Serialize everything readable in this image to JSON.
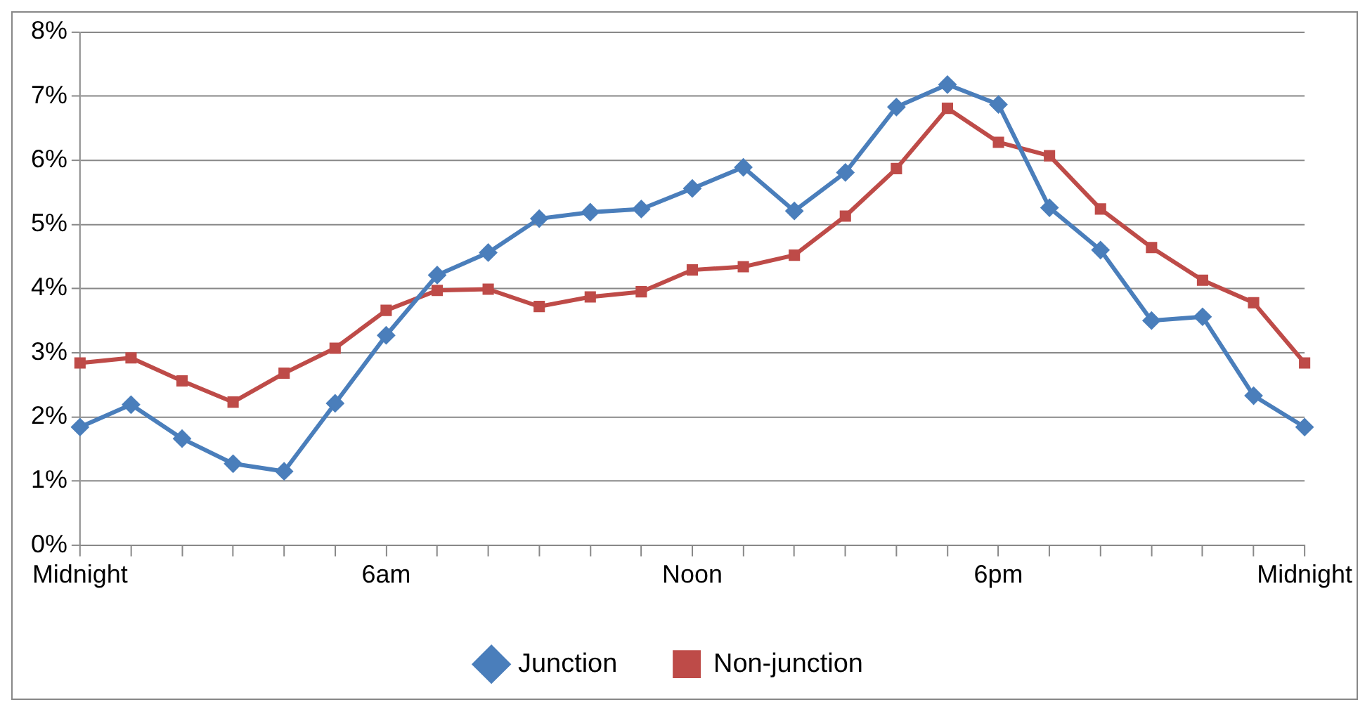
{
  "chart_data": {
    "type": "line",
    "categories": [
      "Midnight",
      null,
      null,
      null,
      null,
      null,
      "6am",
      null,
      null,
      null,
      null,
      null,
      "Noon",
      null,
      null,
      null,
      null,
      null,
      "6pm",
      null,
      null,
      null,
      null,
      null,
      "Midnight"
    ],
    "series": [
      {
        "name": "Junction",
        "color": "#4a7ebb",
        "marker": "diamond",
        "values": [
          1.84,
          2.19,
          1.66,
          1.27,
          1.15,
          2.21,
          3.27,
          4.21,
          4.56,
          5.09,
          5.19,
          5.24,
          5.56,
          5.89,
          5.21,
          5.81,
          6.83,
          7.18,
          6.87,
          5.26,
          4.6,
          3.5,
          3.56,
          2.33,
          1.84
        ]
      },
      {
        "name": "Non-junction",
        "color": "#be4b48",
        "marker": "square",
        "values": [
          2.84,
          2.92,
          2.56,
          2.23,
          2.68,
          3.07,
          3.66,
          3.97,
          3.99,
          3.72,
          3.87,
          3.95,
          4.29,
          4.34,
          4.52,
          5.13,
          5.87,
          6.81,
          6.28,
          6.07,
          5.24,
          4.64,
          4.13,
          3.78,
          2.84
        ]
      }
    ],
    "ylim": [
      0,
      8
    ],
    "yticks": [
      {
        "value": 0,
        "label": "0%"
      },
      {
        "value": 1,
        "label": "1%"
      },
      {
        "value": 2,
        "label": "2%"
      },
      {
        "value": 3,
        "label": "3%"
      },
      {
        "value": 4,
        "label": "4%"
      },
      {
        "value": 5,
        "label": "5%"
      },
      {
        "value": 6,
        "label": "6%"
      },
      {
        "value": 7,
        "label": "7%"
      },
      {
        "value": 8,
        "label": "8%"
      }
    ],
    "grid": "y",
    "legend": "bottom",
    "line_style": "solid"
  }
}
